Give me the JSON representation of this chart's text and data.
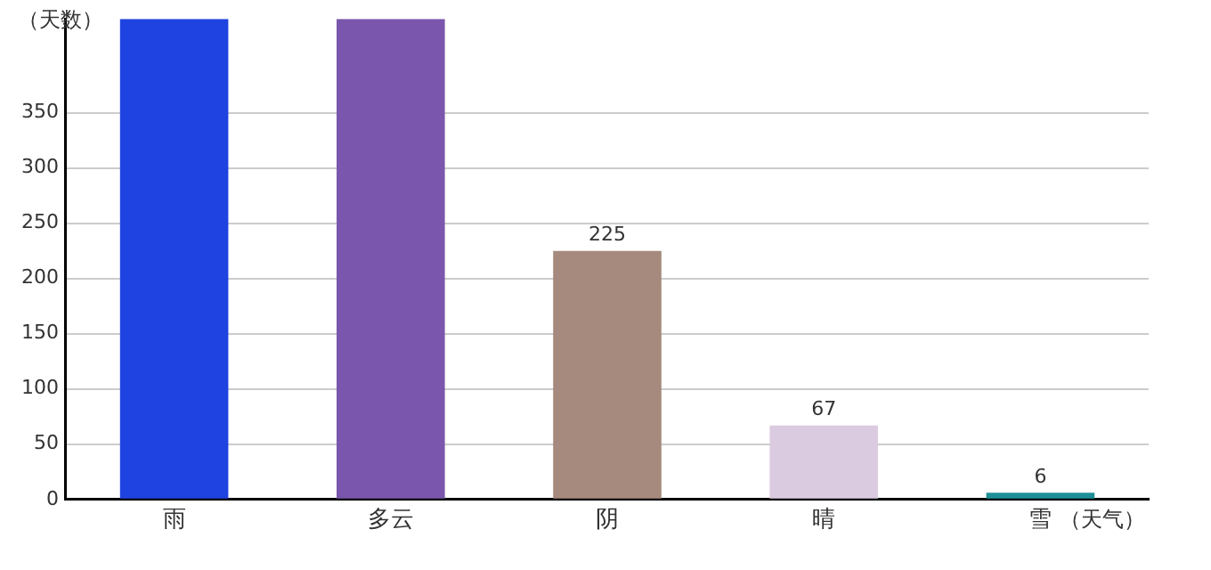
{
  "chart_data": {
    "type": "bar",
    "ylabel": "（天数）",
    "xlabel": "（天气）",
    "categories": [
      "雨",
      "多云",
      "阴",
      "晴",
      "雪"
    ],
    "values": [
      435,
      435,
      225,
      67,
      6
    ],
    "colors": [
      "#1f43e0",
      "#7a57ac",
      "#a68a7e",
      "#dbcbe1",
      "#1e8f98"
    ],
    "value_labels": [
      null,
      null,
      "225",
      "67",
      "6"
    ],
    "ylim": [
      0,
      435
    ],
    "yticks": [
      0,
      50,
      100,
      150,
      200,
      250,
      300,
      350
    ],
    "grid": "y",
    "legend": false
  }
}
